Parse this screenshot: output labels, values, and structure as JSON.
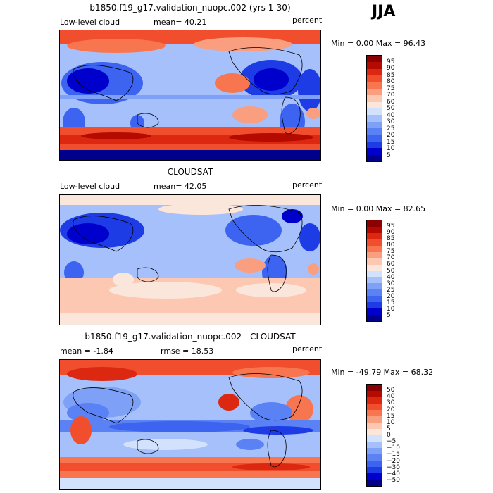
{
  "season": "JJA",
  "panels": [
    {
      "title": "b1850.f19_g17.validation_nuopc.002 (yrs 1-30)",
      "variable": "Low-level cloud",
      "mean_text": "mean=  40.21",
      "units": "percent",
      "minmax_text": "Min =    0.00 Max =   96.43",
      "colorbar_labels": [
        "95",
        "90",
        "85",
        "80",
        "75",
        "70",
        "60",
        "50",
        "40",
        "30",
        "25",
        "20",
        "15",
        "10",
        "5"
      ]
    },
    {
      "title": "CLOUDSAT",
      "variable": "Low-level cloud",
      "mean_text": "mean=  42.05",
      "units": "percent",
      "minmax_text": "Min =    0.00 Max =   82.65",
      "colorbar_labels": [
        "95",
        "90",
        "85",
        "80",
        "75",
        "70",
        "60",
        "50",
        "40",
        "30",
        "25",
        "20",
        "15",
        "10",
        "5"
      ]
    },
    {
      "title": "b1850.f19_g17.validation_nuopc.002 - CLOUDSAT",
      "mean_text": "mean =  -1.84",
      "rmse_text": "rmse =  18.53",
      "units": "percent",
      "minmax_text": "Min = -49.79 Max =  68.32",
      "colorbar_labels": [
        "50",
        "40",
        "30",
        "20",
        "15",
        "10",
        "5",
        "0",
        "−5",
        "−10",
        "−15",
        "−20",
        "−30",
        "−40",
        "−50"
      ]
    }
  ],
  "colors": {
    "seq_scale": [
      "#00008b",
      "#0000cd",
      "#1e3ce6",
      "#3c64f0",
      "#5a82f5",
      "#7ea0f7",
      "#a5c0fa",
      "#d2e2fc",
      "#fbe6dc",
      "#fcc8b2",
      "#fa9e80",
      "#f77650",
      "#f04e2c",
      "#dc2810",
      "#b40a00",
      "#8b0000"
    ],
    "diff_scale": [
      "#00008b",
      "#0000cd",
      "#1e3ce6",
      "#3c64f0",
      "#5a82f5",
      "#7ea0f7",
      "#a5c0fa",
      "#d2e2fc",
      "#fbe6dc",
      "#fcc8b2",
      "#fa9e80",
      "#f77650",
      "#f04e2c",
      "#dc2810",
      "#b40a00",
      "#8b0000"
    ]
  }
}
